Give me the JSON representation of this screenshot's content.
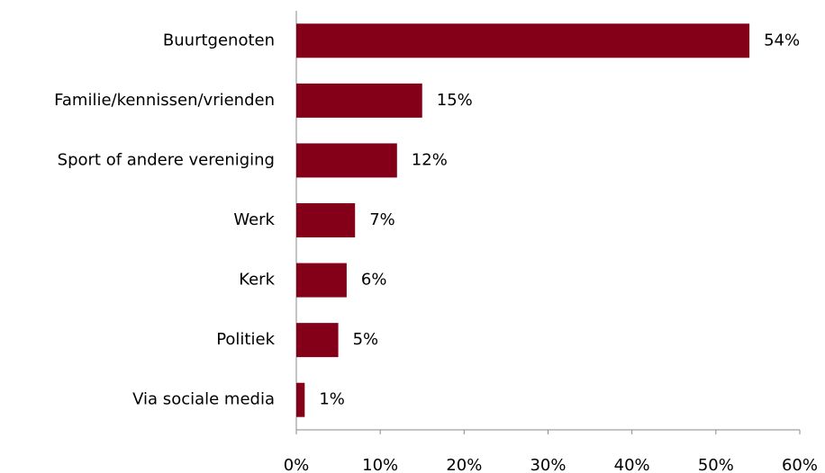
{
  "chart_data": {
    "type": "bar",
    "orientation": "horizontal",
    "categories": [
      "Buurtgenoten",
      "Familie/kennissen/vrienden",
      "Sport of andere vereniging",
      "Werk",
      "Kerk",
      "Politiek",
      "Via sociale media"
    ],
    "values": [
      54,
      15,
      12,
      7,
      6,
      5,
      1
    ],
    "value_labels": [
      "54%",
      "15%",
      "12%",
      "7%",
      "6%",
      "5%",
      "1%"
    ],
    "color": "#840018",
    "xlim": [
      0,
      60
    ],
    "xticks": [
      {
        "value": 0,
        "label": "0%"
      },
      {
        "value": 10,
        "label": "10%"
      },
      {
        "value": 20,
        "label": "20%"
      },
      {
        "value": 30,
        "label": "30%"
      },
      {
        "value": 40,
        "label": "40%"
      },
      {
        "value": 50,
        "label": "50%"
      },
      {
        "value": 60,
        "label": "60%"
      }
    ],
    "grid": false
  }
}
